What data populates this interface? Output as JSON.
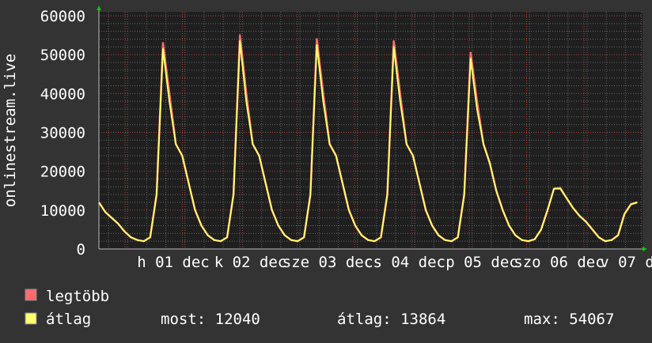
{
  "chart_data": {
    "type": "line",
    "ylabel": "onlinestream.live",
    "ylim": [
      0,
      60000
    ],
    "y_ticks": [
      "0",
      "10000",
      "20000",
      "30000",
      "40000",
      "50000",
      "60000"
    ],
    "x_tick_labels": [
      "h 01 dec",
      "k 02 dec",
      "sze 03 dec",
      "cs 04 dec",
      "p 05 dec",
      "szo 06 dec",
      "v 07 dec"
    ],
    "grid": true,
    "series": [
      {
        "name": "legtöbb",
        "color": "#ff6b6b",
        "values": [
          12000,
          9500,
          8000,
          6500,
          4500,
          3000,
          2300,
          2000,
          3000,
          14000,
          53000,
          40000,
          27000,
          24000,
          17000,
          10000,
          6000,
          3500,
          2300,
          2000,
          3000,
          14000,
          55000,
          40000,
          27000,
          24000,
          17000,
          10000,
          6000,
          3500,
          2300,
          2000,
          3000,
          14000,
          54000,
          40000,
          27000,
          24000,
          17000,
          10000,
          6000,
          3500,
          2300,
          2000,
          3000,
          14000,
          53500,
          40000,
          27000,
          24000,
          17000,
          10000,
          6000,
          3500,
          2300,
          2000,
          3000,
          14000,
          50500,
          38000,
          27000,
          22000,
          15000,
          10000,
          6000,
          3500,
          2300,
          2000,
          2500,
          5000,
          10000,
          15500,
          15700,
          13000,
          10500,
          8500,
          7000,
          5000,
          3000,
          2000,
          2300,
          3500,
          9000,
          11500,
          12000
        ]
      },
      {
        "name": "átlag",
        "color": "#ffff70",
        "values": [
          12000,
          9500,
          8000,
          6500,
          4500,
          3000,
          2300,
          2000,
          3000,
          14000,
          51500,
          38000,
          27000,
          24000,
          17000,
          10000,
          6000,
          3500,
          2300,
          2000,
          3000,
          14000,
          53500,
          38000,
          27000,
          24000,
          17000,
          10000,
          6000,
          3500,
          2300,
          2000,
          3000,
          14000,
          52500,
          38000,
          27000,
          24000,
          17000,
          10000,
          6000,
          3500,
          2300,
          2000,
          3000,
          14000,
          52000,
          38000,
          27000,
          24000,
          17000,
          10000,
          6000,
          3500,
          2300,
          2000,
          3000,
          14000,
          49000,
          36000,
          27000,
          22000,
          15000,
          10000,
          6000,
          3500,
          2300,
          2000,
          2500,
          5000,
          10000,
          15500,
          15500,
          13000,
          10500,
          8500,
          7000,
          5000,
          3000,
          2000,
          2300,
          3500,
          9000,
          11500,
          12000
        ]
      }
    ]
  },
  "legend": {
    "max_label": "legtöbb",
    "avg_label": "átlag",
    "current": "most: 12040",
    "average": "átlag: 13864",
    "maximum": "max: 54067"
  },
  "colors": {
    "background": "#333333",
    "plot_background": "#1f1f1f",
    "major_grid": "#b04040",
    "minor_grid": "#666666",
    "axis_arrow": "#00cc00"
  }
}
